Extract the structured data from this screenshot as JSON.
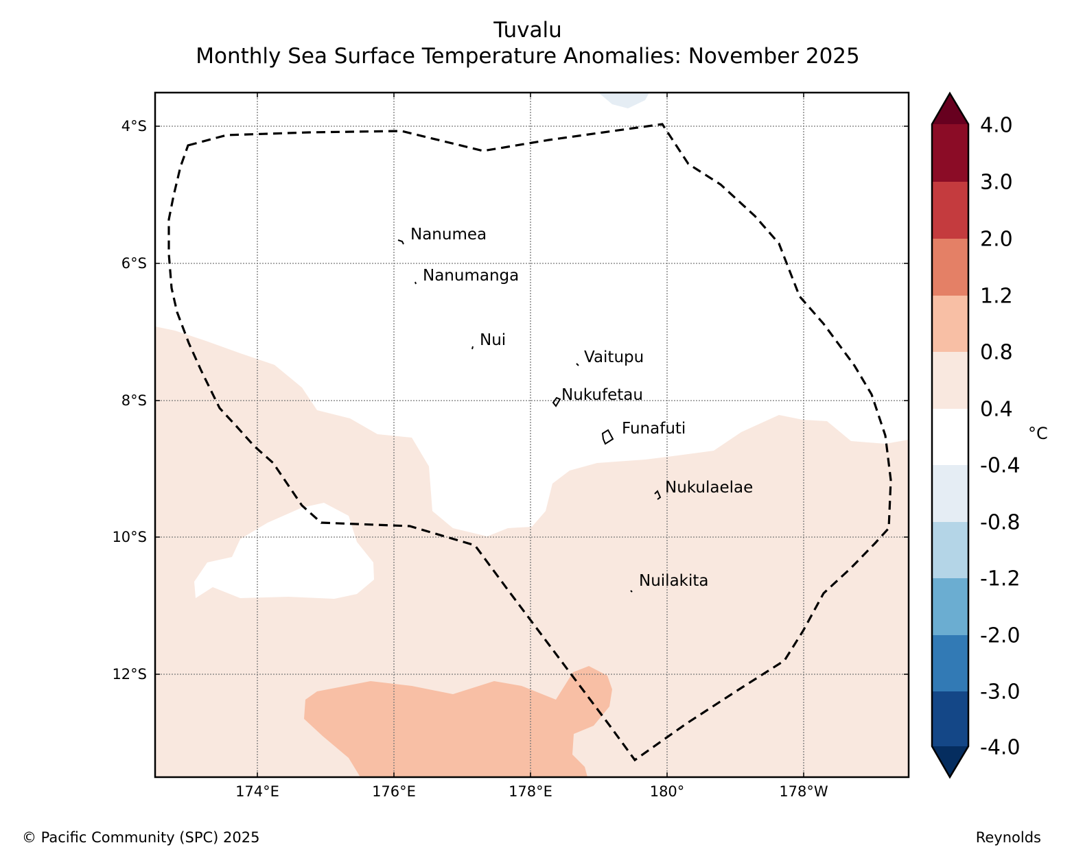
{
  "title": "Tuvalu",
  "subtitle": "Monthly Sea Surface Temperature Anomalies: November 2025",
  "map": {
    "lat_labels": [
      "4°S",
      "6°S",
      "8°S",
      "10°S",
      "12°S"
    ],
    "lon_labels": [
      "174°E",
      "176°E",
      "178°E",
      "180°",
      "178°W"
    ],
    "islands": [
      {
        "name": "Nanumea"
      },
      {
        "name": "Nanumanga"
      },
      {
        "name": "Nui"
      },
      {
        "name": "Vaitupu"
      },
      {
        "name": "Nukufetau"
      },
      {
        "name": "Funafuti"
      },
      {
        "name": "Nukulaelae"
      },
      {
        "name": "Nuilakita"
      }
    ]
  },
  "colorbar": {
    "unit": "°C",
    "tick_labels": [
      "4.0",
      "3.0",
      "2.0",
      "1.2",
      "0.8",
      "0.4",
      "-0.4",
      "-0.8",
      "-1.2",
      "-2.0",
      "-3.0",
      "-4.0"
    ],
    "colors": [
      "#67001f",
      "#8b0c26",
      "#c43b3e",
      "#e48066",
      "#f8bfa5",
      "#f9e8df",
      "#ffffff",
      "#e5edf4",
      "#b4d5e7",
      "#6badd1",
      "#327ab5",
      "#144787",
      "#052d5f"
    ]
  },
  "footer": {
    "copyright": "© Pacific Community (SPC) 2025",
    "source": "Reynolds"
  }
}
